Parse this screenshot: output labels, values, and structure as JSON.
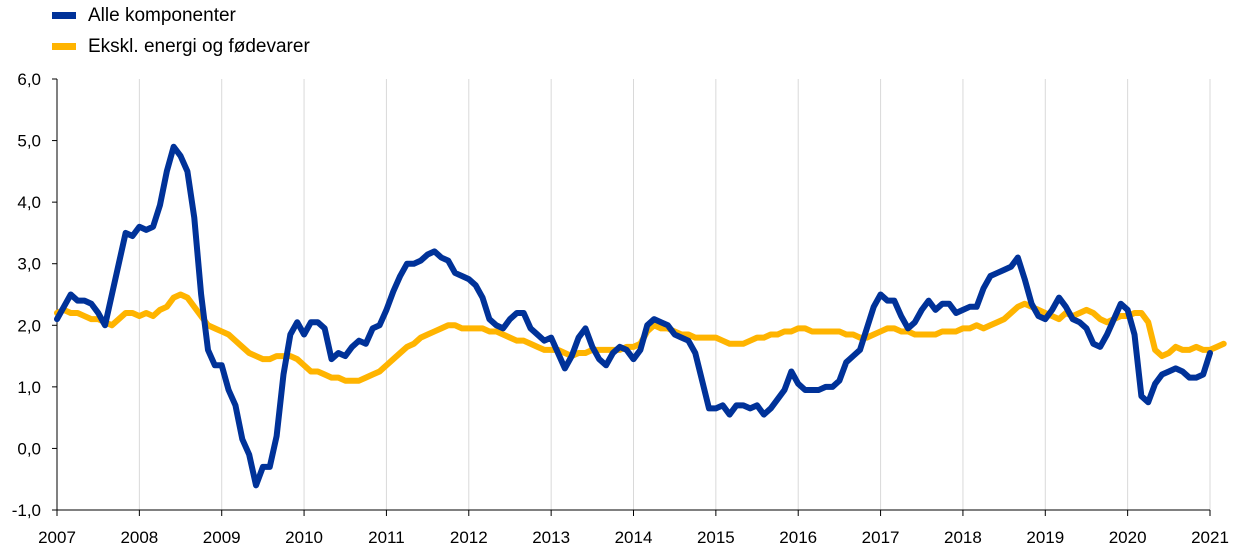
{
  "legend": [
    {
      "label": "Alle komponenter",
      "color": "#003299"
    },
    {
      "label": "Ekskl. energi og fødevarer",
      "color": "#FFB400"
    }
  ],
  "chart_data": {
    "type": "line",
    "title": "",
    "xlabel": "",
    "ylabel": "",
    "ylim": [
      -1.0,
      6.0
    ],
    "y_ticks": [
      "-1,0",
      "0,0",
      "1,0",
      "2,0",
      "3,0",
      "4,0",
      "5,0",
      "6,0"
    ],
    "x_ticks": [
      "2007",
      "2008",
      "2009",
      "2010",
      "2011",
      "2012",
      "2013",
      "2014",
      "2015",
      "2016",
      "2017",
      "2018",
      "2019",
      "2020",
      "2021"
    ],
    "grid": "vertical",
    "legend_position": "top-left",
    "x_start": "2007-01",
    "series": [
      {
        "name": "Alle komponenter",
        "color": "#003299",
        "values": [
          2.1,
          2.3,
          2.5,
          2.4,
          2.4,
          2.35,
          2.2,
          2.0,
          2.5,
          3.0,
          3.5,
          3.45,
          3.6,
          3.55,
          3.6,
          3.95,
          4.5,
          4.9,
          4.75,
          4.5,
          3.75,
          2.5,
          1.6,
          1.35,
          1.35,
          0.95,
          0.7,
          0.15,
          -0.1,
          -0.6,
          -0.3,
          -0.3,
          0.2,
          1.2,
          1.85,
          2.05,
          1.85,
          2.05,
          2.05,
          1.95,
          1.45,
          1.55,
          1.5,
          1.65,
          1.75,
          1.7,
          1.95,
          2.0,
          2.25,
          2.55,
          2.8,
          3.0,
          3.0,
          3.05,
          3.15,
          3.2,
          3.1,
          3.05,
          2.85,
          2.8,
          2.75,
          2.65,
          2.45,
          2.1,
          2.0,
          1.95,
          2.1,
          2.2,
          2.2,
          1.95,
          1.85,
          1.75,
          1.8,
          1.55,
          1.3,
          1.5,
          1.8,
          1.95,
          1.65,
          1.45,
          1.35,
          1.55,
          1.65,
          1.6,
          1.45,
          1.6,
          2.0,
          2.1,
          2.05,
          2.0,
          1.85,
          1.8,
          1.75,
          1.55,
          1.1,
          0.65,
          0.65,
          0.7,
          0.55,
          0.7,
          0.7,
          0.65,
          0.7,
          0.55,
          0.65,
          0.8,
          0.95,
          1.25,
          1.05,
          0.95,
          0.95,
          0.95,
          1.0,
          1.0,
          1.1,
          1.4,
          1.5,
          1.6,
          1.95,
          2.3,
          2.5,
          2.4,
          2.4,
          2.15,
          1.95,
          2.05,
          2.25,
          2.4,
          2.25,
          2.35,
          2.35,
          2.2,
          2.25,
          2.3,
          2.3,
          2.6,
          2.8,
          2.85,
          2.9,
          2.95,
          3.1,
          2.75,
          2.35,
          2.15,
          2.1,
          2.25,
          2.45,
          2.3,
          2.1,
          2.05,
          1.95,
          1.7,
          1.65,
          1.85,
          2.1,
          2.35,
          2.25,
          1.85,
          0.85,
          0.75,
          1.05,
          1.2,
          1.25,
          1.3,
          1.25,
          1.15,
          1.15,
          1.2,
          1.55
        ]
      },
      {
        "name": "Ekskl. energi og fødevarer",
        "color": "#FFB400",
        "values": [
          2.2,
          2.25,
          2.2,
          2.2,
          2.15,
          2.1,
          2.1,
          2.05,
          2.0,
          2.1,
          2.2,
          2.2,
          2.15,
          2.2,
          2.15,
          2.25,
          2.3,
          2.45,
          2.5,
          2.45,
          2.3,
          2.15,
          2.0,
          1.95,
          1.9,
          1.85,
          1.75,
          1.65,
          1.55,
          1.5,
          1.45,
          1.45,
          1.5,
          1.5,
          1.5,
          1.45,
          1.35,
          1.25,
          1.25,
          1.2,
          1.15,
          1.15,
          1.1,
          1.1,
          1.1,
          1.15,
          1.2,
          1.25,
          1.35,
          1.45,
          1.55,
          1.65,
          1.7,
          1.8,
          1.85,
          1.9,
          1.95,
          2.0,
          2.0,
          1.95,
          1.95,
          1.95,
          1.95,
          1.9,
          1.9,
          1.85,
          1.8,
          1.75,
          1.75,
          1.7,
          1.65,
          1.6,
          1.6,
          1.6,
          1.55,
          1.5,
          1.55,
          1.55,
          1.6,
          1.6,
          1.6,
          1.6,
          1.6,
          1.65,
          1.65,
          1.7,
          1.9,
          2.0,
          1.95,
          1.95,
          1.9,
          1.85,
          1.85,
          1.8,
          1.8,
          1.8,
          1.8,
          1.75,
          1.7,
          1.7,
          1.7,
          1.75,
          1.8,
          1.8,
          1.85,
          1.85,
          1.9,
          1.9,
          1.95,
          1.95,
          1.9,
          1.9,
          1.9,
          1.9,
          1.9,
          1.85,
          1.85,
          1.8,
          1.8,
          1.85,
          1.9,
          1.95,
          1.95,
          1.9,
          1.9,
          1.85,
          1.85,
          1.85,
          1.85,
          1.9,
          1.9,
          1.9,
          1.95,
          1.95,
          2.0,
          1.95,
          2.0,
          2.05,
          2.1,
          2.2,
          2.3,
          2.35,
          2.3,
          2.25,
          2.2,
          2.15,
          2.1,
          2.2,
          2.15,
          2.2,
          2.25,
          2.2,
          2.1,
          2.05,
          2.1,
          2.15,
          2.15,
          2.2,
          2.2,
          2.05,
          1.6,
          1.5,
          1.55,
          1.65,
          1.6,
          1.6,
          1.65,
          1.6,
          1.6,
          1.65,
          1.7
        ]
      }
    ]
  }
}
